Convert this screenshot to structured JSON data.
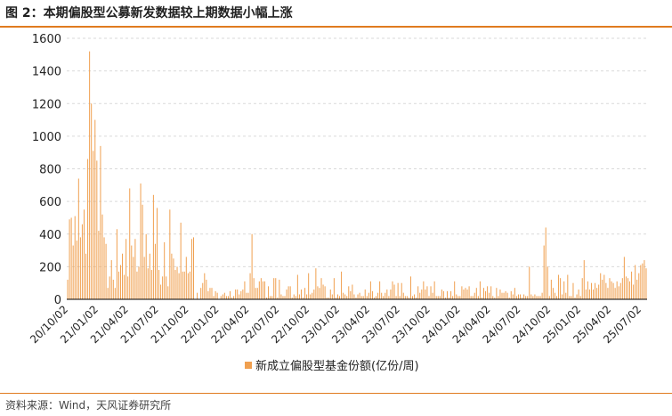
{
  "header": {
    "title": "图 2：本期偏股型公募新发数据较上期数据小幅上涨"
  },
  "footer": {
    "source": "资料来源：Wind，天风证券研究所"
  },
  "colors": {
    "bar": "#f0a050",
    "accent": "#e07b1f",
    "grid": "#d9d9d9"
  },
  "chart_data": {
    "type": "bar",
    "title": "",
    "xlabel": "",
    "ylabel": "",
    "ylim": [
      0,
      1600
    ],
    "yticks": [
      0,
      200,
      400,
      600,
      800,
      1000,
      1200,
      1400,
      1600
    ],
    "grid": true,
    "legend_position": "bottom-center",
    "x_tick_labels": [
      "20/10/02",
      "21/01/02",
      "21/04/02",
      "21/07/02",
      "21/10/02",
      "22/01/02",
      "22/04/02",
      "22/07/02",
      "22/10/02",
      "23/01/02",
      "23/04/02",
      "23/07/02",
      "23/10/02",
      "24/01/02",
      "24/04/02",
      "24/07/02",
      "24/10/02",
      "25/01/02",
      "25/04/02",
      "25/07/02"
    ],
    "series": [
      {
        "name": "新成立偏股型基金份额(亿份/周)",
        "values": [
          120,
          490,
          500,
          330,
          510,
          360,
          740,
          380,
          460,
          550,
          280,
          860,
          1520,
          1200,
          910,
          1100,
          850,
          420,
          940,
          520,
          380,
          340,
          70,
          140,
          240,
          120,
          70,
          430,
          170,
          210,
          280,
          150,
          370,
          140,
          680,
          330,
          260,
          370,
          170,
          200,
          710,
          580,
          260,
          400,
          190,
          280,
          180,
          640,
          340,
          560,
          180,
          90,
          140,
          350,
          140,
          80,
          550,
          280,
          250,
          180,
          200,
          160,
          470,
          170,
          170,
          260,
          160,
          170,
          370,
          380,
          0,
          40,
          0,
          70,
          100,
          160,
          120,
          50,
          70,
          70,
          20,
          50,
          40,
          0,
          20,
          30,
          40,
          20,
          20,
          50,
          10,
          20,
          60,
          60,
          30,
          50,
          60,
          110,
          40,
          40,
          160,
          400,
          130,
          70,
          70,
          110,
          130,
          110,
          110,
          10,
          80,
          20,
          20,
          130,
          130,
          10,
          120,
          30,
          20,
          20,
          60,
          80,
          80,
          10,
          30,
          20,
          150,
          30,
          60,
          10,
          70,
          30,
          160,
          30,
          40,
          60,
          190,
          80,
          70,
          130,
          90,
          80,
          10,
          10,
          60,
          30,
          130,
          10,
          30,
          20,
          170,
          40,
          30,
          20,
          80,
          50,
          90,
          30,
          10,
          30,
          40,
          20,
          20,
          60,
          20,
          40,
          110,
          50,
          10,
          20,
          40,
          110,
          40,
          20,
          40,
          60,
          20,
          60,
          110,
          90,
          20,
          100,
          20,
          100,
          40,
          20,
          20,
          10,
          140,
          20,
          30,
          10,
          80,
          40,
          60,
          110,
          60,
          80,
          20,
          80,
          40,
          110,
          20,
          20,
          20,
          60,
          50,
          10,
          50,
          10,
          50,
          20,
          110,
          30,
          20,
          20,
          80,
          60,
          70,
          60,
          80,
          20,
          20,
          40,
          70,
          20,
          110,
          10,
          70,
          50,
          80,
          40,
          80,
          20,
          10,
          70,
          20,
          60,
          40,
          40,
          50,
          40,
          10,
          50,
          30,
          70,
          20,
          30,
          30,
          10,
          30,
          20,
          20,
          200,
          30,
          20,
          30,
          20,
          20,
          20,
          40,
          330,
          440,
          200,
          20,
          120,
          70,
          40,
          20,
          150,
          130,
          30,
          110,
          40,
          150,
          20,
          20,
          100,
          10,
          30,
          60,
          20,
          130,
          240,
          60,
          110,
          60,
          100,
          60,
          100,
          70,
          90,
          160,
          120,
          150,
          100,
          70,
          130,
          110,
          100,
          70,
          110,
          80,
          100,
          130,
          260,
          140,
          130,
          110,
          170,
          90,
          210,
          120,
          160,
          210,
          220,
          240,
          190
        ]
      }
    ]
  }
}
